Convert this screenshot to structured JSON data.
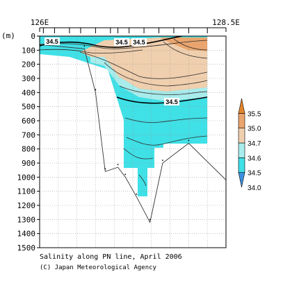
{
  "chart_data": {
    "type": "heatmap",
    "title": "Salinity along PN line, April 2006",
    "credit": "(C) Japan Meteorological Agency",
    "x_axis": {
      "tick_labels": [
        "126E",
        "128.5E"
      ],
      "range": [
        126.0,
        128.5
      ]
    },
    "y_axis": {
      "unit_label": "(m)",
      "range": [
        0,
        1500
      ],
      "ticks": [
        0,
        100,
        200,
        300,
        400,
        500,
        600,
        700,
        800,
        900,
        1000,
        1100,
        1200,
        1300,
        1400,
        1500
      ],
      "reversed": true
    },
    "grid": true,
    "legend": {
      "placement": "right",
      "levels": [
        "34.0",
        "34.5",
        "34.6",
        "34.7",
        "35.0",
        "35.5"
      ],
      "colors": [
        "#3d8fe0",
        "#3fe0e6",
        "#a8ecec",
        "#f0cfae",
        "#eaa56e",
        "#e2852c"
      ]
    },
    "contour_labels": [
      "34.5",
      "34.5",
      "34.5",
      "34.5"
    ],
    "station_longitudes": [
      126.05,
      126.2,
      126.4,
      126.55,
      126.75,
      126.95,
      127.05,
      127.2,
      127.4,
      127.6,
      127.8,
      128.0,
      128.25
    ],
    "bottom_topography": [
      {
        "x": 126.0,
        "y": 60
      },
      {
        "x": 126.6,
        "y": 90
      },
      {
        "x": 126.75,
        "y": 400
      },
      {
        "x": 126.88,
        "y": 960
      },
      {
        "x": 127.05,
        "y": 930
      },
      {
        "x": 127.15,
        "y": 1000
      },
      {
        "x": 127.3,
        "y": 1140
      },
      {
        "x": 127.48,
        "y": 1320
      },
      {
        "x": 127.65,
        "y": 900
      },
      {
        "x": 128.0,
        "y": 760
      },
      {
        "x": 128.5,
        "y": 1020
      }
    ]
  }
}
